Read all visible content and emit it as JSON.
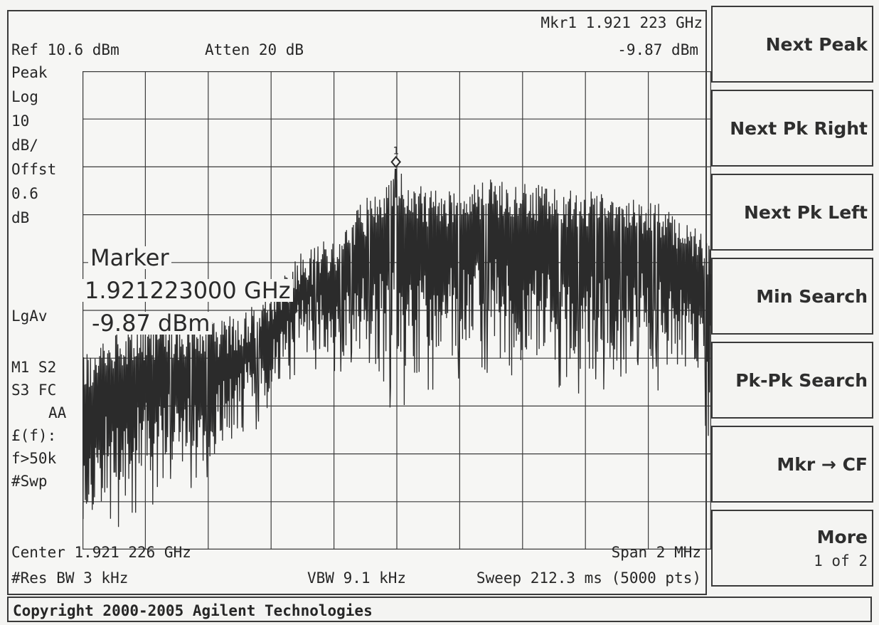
{
  "header": {
    "ref_level": "Ref 10.6 dBm",
    "attenuation": "Atten 20 dB",
    "marker_freq": "Mkr1  1.921 223 GHz",
    "marker_amp": "-9.87 dBm"
  },
  "left_annotations": {
    "detector": "Peak",
    "scale_type": "Log",
    "scale_value": "10",
    "scale_unit": "dB/",
    "offset_label": "Offst",
    "offset_value": "0.6",
    "offset_unit": "dB",
    "avg_type": "LgAv",
    "status_line1": "M1  S2",
    "status_line2": "S3  FC",
    "status_line3": "AA",
    "phase_noise": "£(f):",
    "offset_filter": "f>50k",
    "sweep_mode": "#Swp"
  },
  "marker_readout": {
    "title": "Marker",
    "frequency": "1.921223000 GHz",
    "amplitude": "-9.87 dBm"
  },
  "marker_symbol": "1",
  "footer": {
    "center": "Center 1.921 226 GHz",
    "span": "Span 2 MHz",
    "res_bw": "#Res BW 3 kHz",
    "vbw": "VBW 9.1 kHz",
    "sweep": "Sweep 212.3 ms (5000 pts)"
  },
  "softkeys": [
    {
      "label": "Next Peak"
    },
    {
      "label": "Next Pk Right"
    },
    {
      "label": "Next Pk Left"
    },
    {
      "label": "Min Search"
    },
    {
      "label": "Pk-Pk Search"
    },
    {
      "label": "Mkr → CF"
    },
    {
      "label": "More",
      "sub": "1 of 2"
    }
  ],
  "copyright": "Copyright 2000-2005 Agilent Technologies",
  "colors": {
    "trace": "#2b2b2b",
    "grid": "#3c3c3c",
    "background": "#f6f6f4"
  },
  "chart_data": {
    "type": "line",
    "x_unit": "GHz",
    "y_unit": "dBm",
    "xlim": [
      1.920226,
      1.922226
    ],
    "ylim": [
      -89.4,
      10.6
    ],
    "x_divisions": 10,
    "y_divisions": 10,
    "marker": {
      "x": 1.921223,
      "y": -9.87
    },
    "envelope": {
      "x": [
        1.920226,
        1.920326,
        1.920426,
        1.920526,
        1.920626,
        1.920726,
        1.920826,
        1.920926,
        1.921026,
        1.921126,
        1.921223,
        1.921326,
        1.921426,
        1.921526,
        1.921626,
        1.921726,
        1.921826,
        1.921926,
        1.922026,
        1.922126,
        1.922226
      ],
      "upper": [
        -49,
        -44,
        -42,
        -42,
        -42,
        -40,
        -35,
        -27,
        -24,
        -16,
        -10,
        -14,
        -14,
        -12,
        -12,
        -14,
        -14,
        -15,
        -16,
        -19,
        -25
      ],
      "lower": [
        -83,
        -80,
        -75,
        -72,
        -72,
        -66,
        -56,
        -48,
        -50,
        -48,
        -57,
        -52,
        -48,
        -48,
        -50,
        -52,
        -54,
        -52,
        -50,
        -52,
        -64
      ]
    }
  }
}
